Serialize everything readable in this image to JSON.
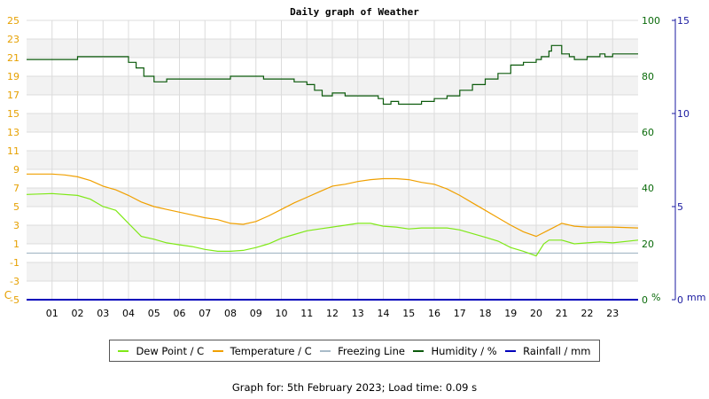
{
  "colors": {
    "dew_point": "#7fe817",
    "temperature": "#f0a000",
    "freezing_line": "#a9bcc9",
    "humidity": "#0b5a0b",
    "rainfall": "#0000bb",
    "left_axis": "#e6a000",
    "humidity_axis": "#0b6b0b",
    "rain_axis": "#1a1aa0"
  },
  "footer": {
    "text": "Graph for: 5th February 2023; Load time: 0.09 s"
  },
  "legend": [
    {
      "label": "Dew Point / C",
      "color": "#7fe817"
    },
    {
      "label": "Temperature / C",
      "color": "#f0a000"
    },
    {
      "label": "Freezing Line",
      "color": "#a9bcc9"
    },
    {
      "label": "Humidity / %",
      "color": "#0b5a0b"
    },
    {
      "label": "Rainfall / mm",
      "color": "#0000bb"
    }
  ],
  "chart_data": {
    "type": "line",
    "title": "Daily graph of Weather",
    "grid": true,
    "legend_position": "bottom",
    "x_range": [
      0,
      24
    ],
    "x_ticks": [
      "01",
      "02",
      "03",
      "04",
      "05",
      "06",
      "07",
      "08",
      "09",
      "10",
      "11",
      "12",
      "13",
      "14",
      "15",
      "16",
      "17",
      "18",
      "19",
      "20",
      "21",
      "22",
      "23"
    ],
    "y_left": {
      "unit": "C",
      "range": [
        -5,
        25
      ],
      "ticks": [
        -5,
        -3,
        -1,
        1,
        3,
        5,
        7,
        9,
        11,
        13,
        15,
        17,
        19,
        21,
        23,
        25
      ]
    },
    "y_humidity": {
      "unit": "%",
      "range": [
        0,
        100
      ],
      "ticks": [
        0,
        20,
        40,
        60,
        80,
        100
      ]
    },
    "y_rain": {
      "unit": "mm",
      "range": [
        0,
        15
      ],
      "ticks": [
        0,
        5,
        10,
        15
      ]
    },
    "series": [
      {
        "name": "Dew Point / C",
        "axis": "left",
        "x": [
          0,
          1,
          2,
          2.5,
          3,
          3.5,
          4,
          4.5,
          5,
          5.5,
          6,
          6.5,
          7,
          7.5,
          8,
          8.5,
          9,
          9.5,
          10,
          10.5,
          11,
          11.5,
          12,
          12.5,
          13,
          13.5,
          14,
          14.5,
          15,
          15.5,
          16,
          16.5,
          17,
          17.5,
          18,
          18.5,
          19,
          19.5,
          20,
          20.3,
          20.5,
          21,
          21.5,
          22,
          22.5,
          23,
          24
        ],
        "y": [
          6.3,
          6.4,
          6.2,
          5.8,
          5.0,
          4.6,
          3.2,
          1.8,
          1.5,
          1.1,
          0.9,
          0.7,
          0.4,
          0.2,
          0.2,
          0.3,
          0.6,
          1.0,
          1.6,
          2.0,
          2.4,
          2.6,
          2.8,
          3.0,
          3.2,
          3.2,
          2.9,
          2.8,
          2.6,
          2.7,
          2.7,
          2.7,
          2.5,
          2.1,
          1.7,
          1.3,
          0.6,
          0.2,
          -0.3,
          1.0,
          1.4,
          1.4,
          1.0,
          1.1,
          1.2,
          1.1,
          1.4
        ]
      },
      {
        "name": "Temperature / C",
        "axis": "left",
        "x": [
          0,
          1,
          1.5,
          2,
          2.5,
          3,
          3.5,
          4,
          4.5,
          5,
          5.5,
          6,
          6.5,
          7,
          7.5,
          8,
          8.5,
          9,
          9.5,
          10,
          10.5,
          11,
          11.5,
          12,
          12.5,
          13,
          13.5,
          14,
          14.5,
          15,
          15.5,
          16,
          16.5,
          17,
          17.5,
          18,
          18.5,
          19,
          19.5,
          20,
          20.5,
          21,
          21.5,
          22,
          22.5,
          23,
          24
        ],
        "y": [
          8.5,
          8.5,
          8.4,
          8.2,
          7.8,
          7.2,
          6.8,
          6.2,
          5.5,
          5.0,
          4.7,
          4.4,
          4.1,
          3.8,
          3.6,
          3.2,
          3.1,
          3.4,
          4.0,
          4.7,
          5.4,
          6.0,
          6.6,
          7.2,
          7.4,
          7.7,
          7.9,
          8.0,
          8.0,
          7.9,
          7.6,
          7.4,
          6.9,
          6.2,
          5.4,
          4.6,
          3.8,
          3.0,
          2.3,
          1.8,
          2.5,
          3.2,
          2.9,
          2.8,
          2.8,
          2.8,
          2.7
        ]
      },
      {
        "name": "Freezing Line",
        "axis": "left",
        "x": [
          0,
          24
        ],
        "y": [
          0,
          0
        ]
      },
      {
        "name": "Humidity / %",
        "axis": "humidity",
        "x": [
          0,
          1,
          1.7,
          2,
          3,
          3.7,
          4,
          4.3,
          4.6,
          5,
          5.5,
          6,
          7,
          8,
          9,
          9.3,
          10,
          10.5,
          11,
          11.3,
          11.6,
          12,
          12.5,
          13,
          13.5,
          13.8,
          14,
          14.3,
          14.6,
          15,
          15.5,
          16,
          16.5,
          17,
          17.5,
          18,
          18.5,
          19,
          19.5,
          20,
          20.2,
          20.5,
          20.6,
          21,
          21.3,
          21.5,
          22,
          22.5,
          22.7,
          23,
          24
        ],
        "y": [
          86,
          86,
          86,
          87,
          87,
          87,
          85,
          83,
          80,
          78,
          79,
          79,
          79,
          80,
          80,
          79,
          79,
          78,
          77,
          75,
          73,
          74,
          73,
          73,
          73,
          72,
          70,
          71,
          70,
          70,
          71,
          72,
          73,
          75,
          77,
          79,
          81,
          84,
          85,
          86,
          87,
          89,
          91,
          88,
          87,
          86,
          87,
          88,
          87,
          88,
          88
        ]
      },
      {
        "name": "Rainfall / mm",
        "axis": "rain",
        "x": [
          0,
          24
        ],
        "y": [
          0,
          0
        ]
      }
    ]
  }
}
